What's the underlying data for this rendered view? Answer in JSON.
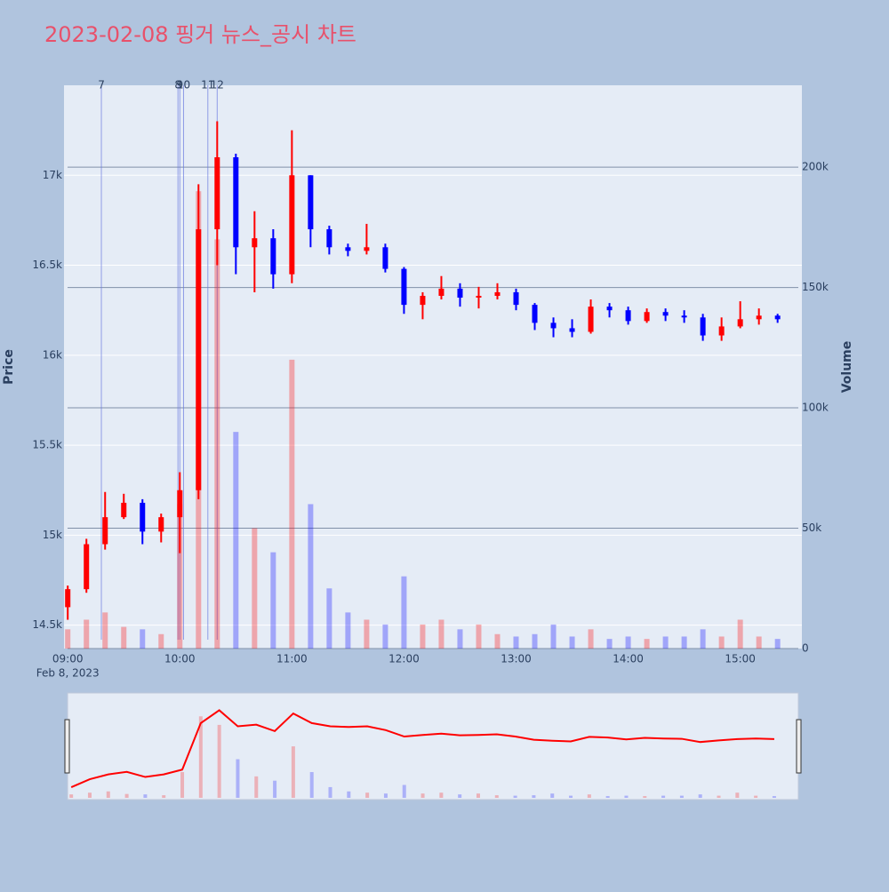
{
  "chart_data": {
    "type": "candlestick",
    "title": "2023-02-08 핑거 뉴스_공시 차트",
    "x": [
      "09:00",
      "09:10",
      "09:20",
      "09:30",
      "09:40",
      "09:50",
      "10:00",
      "10:10",
      "10:20",
      "10:30",
      "10:40",
      "10:50",
      "11:00",
      "11:10",
      "11:20",
      "11:30",
      "11:40",
      "11:50",
      "12:00",
      "12:10",
      "12:20",
      "12:30",
      "12:40",
      "12:50",
      "13:00",
      "13:10",
      "13:20",
      "13:30",
      "13:40",
      "13:50",
      "14:00",
      "14:10",
      "14:20",
      "14:30",
      "14:40",
      "14:50",
      "15:00",
      "15:10",
      "15:20"
    ],
    "open": [
      14600,
      14700,
      14950,
      15100,
      15180,
      15020,
      15100,
      15250,
      16700,
      17100,
      16600,
      16650,
      16450,
      17000,
      16700,
      16600,
      16580,
      16600,
      16480,
      16280,
      16330,
      16370,
      16320,
      16330,
      16350,
      16280,
      16180,
      16150,
      16130,
      16270,
      16250,
      16190,
      16240,
      16220,
      16210,
      16110,
      16160,
      16200,
      16220
    ],
    "high": [
      14720,
      14980,
      15240,
      15230,
      15200,
      15120,
      15350,
      16950,
      17300,
      17120,
      16800,
      16700,
      17250,
      17000,
      16720,
      16620,
      16730,
      16620,
      16490,
      16350,
      16440,
      16400,
      16380,
      16400,
      16370,
      16290,
      16210,
      16200,
      16310,
      16290,
      16270,
      16260,
      16260,
      16250,
      16230,
      16210,
      16300,
      16260,
      16230
    ],
    "low": [
      14530,
      14680,
      14920,
      15090,
      14950,
      14960,
      14900,
      15200,
      16500,
      16450,
      16350,
      16370,
      16400,
      16600,
      16560,
      16550,
      16560,
      16460,
      16230,
      16200,
      16310,
      16270,
      16260,
      16310,
      16250,
      16140,
      16100,
      16100,
      16120,
      16210,
      16170,
      16180,
      16190,
      16180,
      16080,
      16080,
      16150,
      16170,
      16180
    ],
    "close": [
      14700,
      14950,
      15100,
      15180,
      15020,
      15100,
      15250,
      16700,
      17100,
      16600,
      16650,
      16450,
      17000,
      16700,
      16600,
      16580,
      16600,
      16480,
      16280,
      16330,
      16370,
      16320,
      16330,
      16350,
      16280,
      16180,
      16150,
      16130,
      16270,
      16250,
      16190,
      16240,
      16220,
      16210,
      16110,
      16160,
      16200,
      16220,
      16200
    ],
    "volume": [
      8000,
      12000,
      15000,
      9000,
      8000,
      6000,
      60000,
      190000,
      170000,
      90000,
      50000,
      40000,
      120000,
      60000,
      25000,
      15000,
      12000,
      10000,
      30000,
      10000,
      12000,
      8000,
      10000,
      6000,
      5000,
      6000,
      10000,
      5000,
      8000,
      4000,
      5000,
      4000,
      5000,
      5000,
      8000,
      5000,
      12000,
      5000,
      4000
    ],
    "increasing_color": "#ff0000",
    "decreasing_color": "#0000ff",
    "xlim": [
      "08:58",
      "15:33"
    ],
    "xticks": [
      "09:00",
      "10:00",
      "11:00",
      "12:00",
      "13:00",
      "14:00",
      "15:00"
    ],
    "x_date_label": "Feb 8, 2023",
    "ylabel": "Price",
    "y2label": "Volume",
    "ylim": [
      14370,
      17500
    ],
    "yticks": [
      {
        "value": 14500,
        "label": "14.5k"
      },
      {
        "value": 15000,
        "label": "15k"
      },
      {
        "value": 15500,
        "label": "15.5k"
      },
      {
        "value": 16000,
        "label": "16k"
      },
      {
        "value": 16500,
        "label": "16.5k"
      },
      {
        "value": 17000,
        "label": "17k"
      }
    ],
    "y2lim": [
      0,
      234000
    ],
    "y2ticks": [
      0,
      {
        "value": 50000,
        "label": "50k"
      },
      {
        "value": 100000,
        "label": "100k"
      },
      {
        "value": 150000,
        "label": "150k"
      },
      {
        "value": 200000,
        "label": "200k"
      }
    ],
    "annotations": [
      {
        "x": "09:18",
        "text": "7"
      },
      {
        "x": "09:59",
        "text": "8"
      },
      {
        "x": "10:00",
        "text": "9"
      },
      {
        "x": "10:02",
        "text": "10"
      },
      {
        "x": "10:15",
        "text": "11"
      },
      {
        "x": "10:20",
        "text": "12"
      }
    ],
    "rangeslider": true
  }
}
